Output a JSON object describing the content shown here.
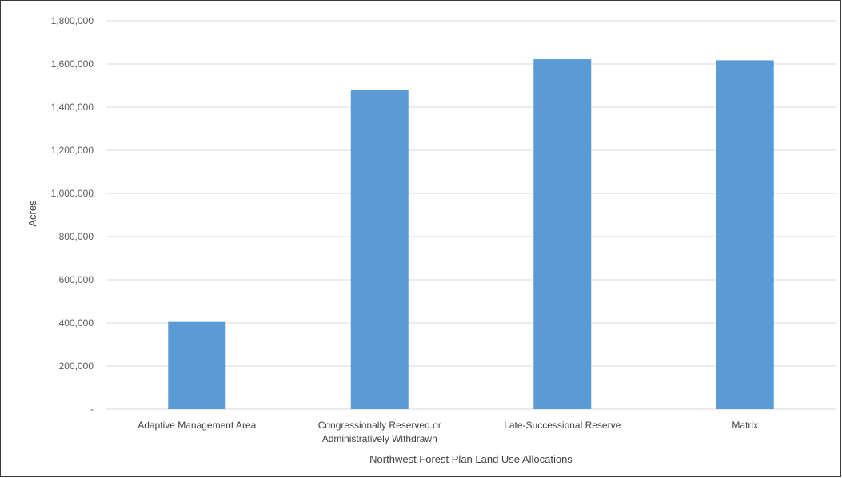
{
  "chart_data": {
    "type": "bar",
    "categories": [
      [
        "Adaptive Management Area"
      ],
      [
        "Congressionally Reserved or",
        "Administratively Withdrawn"
      ],
      [
        "Late-Successional Reserve"
      ],
      [
        "Matrix"
      ]
    ],
    "values": [
      405000,
      1480000,
      1622000,
      1617000
    ],
    "title": "",
    "xlabel": "Northwest Forest Plan Land Use Allocations",
    "ylabel": "Acres",
    "ylim": [
      0,
      1800000
    ],
    "yticks": [
      0,
      200000,
      400000,
      600000,
      800000,
      1000000,
      1200000,
      1400000,
      1600000,
      1800000
    ],
    "ytick_labels": [
      "-",
      "200,000",
      "400,000",
      "600,000",
      "800,000",
      "1,000,000",
      "1,200,000",
      "1,400,000",
      "1,600,000",
      "1,800,000"
    ],
    "grid": true,
    "legend": "none",
    "bar_color": "#5b9bd5",
    "grid_color": "#d9d9d9"
  }
}
